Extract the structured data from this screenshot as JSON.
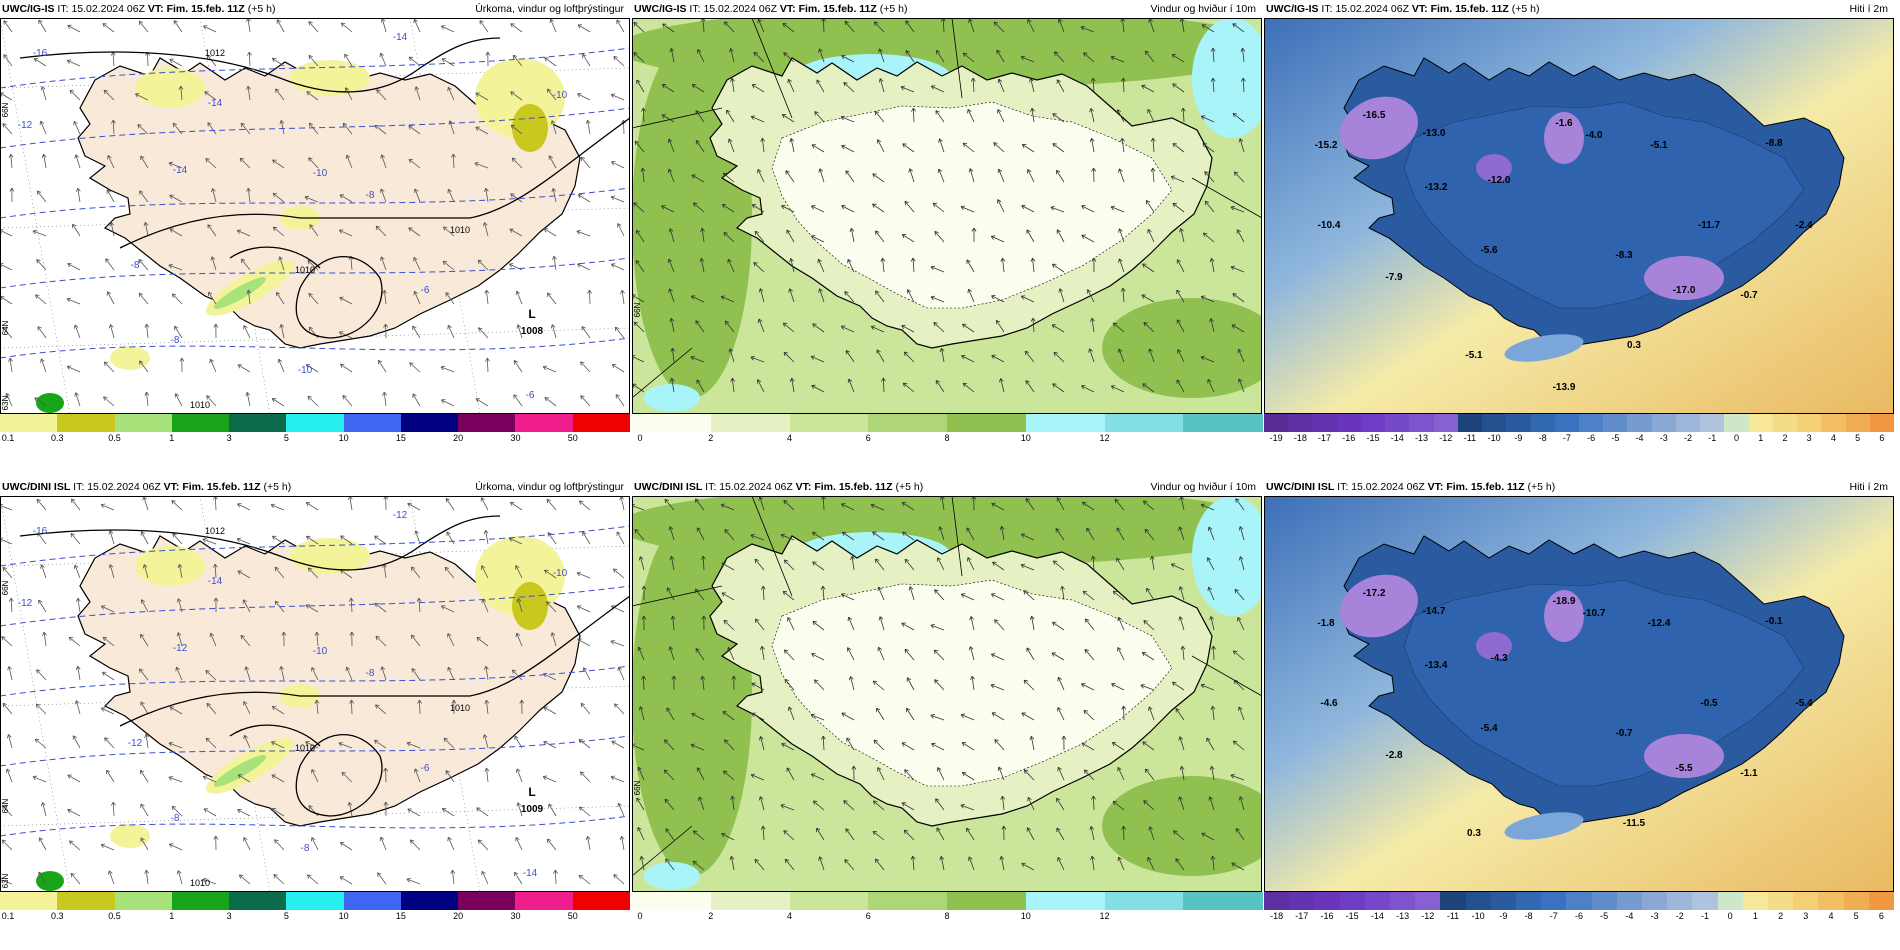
{
  "rows": [
    {
      "model": "UWC/IG-IS",
      "it_label": "IT:",
      "it": "15.02.2024 06Z",
      "vt_label": "VT:",
      "vt": "Fim. 15.feb. 11Z",
      "lead": "(+5 h)",
      "precip": {
        "title": "Úrkoma, vindur og loftþrýstingur",
        "low_label": "L",
        "low_value": "1008",
        "isobar_labels": [
          "1012",
          "1010",
          "1010",
          "1010"
        ],
        "temp_labels": [
          "-16",
          "-14",
          "-12",
          "-14",
          "-10",
          "-10",
          "-8",
          "-8",
          "-10",
          "-8",
          "-6",
          "-6",
          "-14"
        ],
        "lat_labels": [
          "66N",
          "64N",
          "63N"
        ]
      },
      "wind": {
        "title": "Vindur og hviður í 10m",
        "lat_labels": [
          "66N"
        ]
      },
      "temp": {
        "title": "Hiti í 2m",
        "value_labels": [
          "-16.5",
          "-15.2",
          "-13.0",
          "-13.2",
          "-12.0",
          "-5.6",
          "-7.9",
          "-10.4",
          "-4.0",
          "-5.1",
          "-8.8",
          "-1.6",
          "-11.7",
          "-8.3",
          "-2.4",
          "-17.0",
          "-0.7",
          "0.3",
          "-5.1",
          "-13.9"
        ]
      }
    },
    {
      "model": "UWC/DINI ISL",
      "it_label": "IT:",
      "it": "15.02.2024 06Z",
      "vt_label": "VT:",
      "vt": "Fim. 15.feb. 11Z",
      "lead": "(+5 h)",
      "precip": {
        "title": "Úrkoma, vindur og loftþrýstingur",
        "low_label": "L",
        "low_value": "1009",
        "isobar_labels": [
          "1012",
          "1010",
          "1010",
          "1010"
        ],
        "temp_labels": [
          "-16",
          "-14",
          "-12",
          "-12",
          "-10",
          "-10",
          "-12",
          "-8",
          "-8",
          "-8",
          "-6",
          "-14",
          "-12"
        ],
        "lat_labels": [
          "66N",
          "64N",
          "63N"
        ]
      },
      "wind": {
        "title": "Vindur og hviður í 10m",
        "lat_labels": [
          "66N"
        ]
      },
      "temp": {
        "title": "Hiti í 2m",
        "value_labels": [
          "-17.2",
          "-1.8",
          "-14.7",
          "-13.4",
          "-4.3",
          "-5.4",
          "-2.8",
          "-4.6",
          "-10.7",
          "-12.4",
          "-0.1",
          "-18.9",
          "-0.5",
          "-0.7",
          "-5.4",
          "-5.5",
          "-1.1",
          "-11.5",
          "0.3"
        ]
      }
    }
  ],
  "legends": {
    "precip": {
      "labels": [
        "0.1",
        "0.3",
        "0.5",
        "1",
        "3",
        "5",
        "10",
        "15",
        "20",
        "30",
        "50"
      ],
      "colors": [
        "#f3f39a",
        "#c8c81e",
        "#a8e27a",
        "#19a519",
        "#0b6b4b",
        "#27f0f0",
        "#3e66f0",
        "#000080",
        "#7a005e",
        "#f01e8c",
        "#f00000"
      ]
    },
    "wind": {
      "labels": [
        "0",
        "2",
        "4",
        "6",
        "8",
        "10",
        "12"
      ],
      "colors": [
        "#fbfdee",
        "#e5f1c3",
        "#cbe59b",
        "#aed677",
        "#8fc050",
        "#a9f4f8",
        "#82e0e4",
        "#58c2c4"
      ]
    },
    "temp_row1": {
      "labels": [
        "-19",
        "-18",
        "-17",
        "-16",
        "-15",
        "-14",
        "-13",
        "-12",
        "-11",
        "-10",
        "-9",
        "-8",
        "-7",
        "-6",
        "-5",
        "-4",
        "-3",
        "-2",
        "-1",
        "0",
        "1",
        "2",
        "3",
        "4",
        "5",
        "6"
      ]
    },
    "temp_row2": {
      "labels": [
        "-18",
        "-17",
        "-16",
        "-15",
        "-14",
        "-13",
        "-12",
        "-11",
        "-10",
        "-9",
        "-8",
        "-7",
        "-6",
        "-5",
        "-4",
        "-3",
        "-2",
        "-1",
        "0",
        "1",
        "2",
        "3",
        "4",
        "5",
        "6"
      ]
    }
  },
  "colors": {
    "land_precip": "#f9e9d9",
    "sea_precip": "#ffffff",
    "precip_light": "#f3f39a",
    "precip_mid": "#a8e27a",
    "wind_base": "#cbe59b",
    "wind_dark": "#8fc050",
    "wind_cyan": "#a9f4f8",
    "temp_cold": "#2a5aa0",
    "temp_violet": "#a783d9",
    "temp_warm": "#e9b961",
    "isotherm": "#3a4fd0"
  }
}
